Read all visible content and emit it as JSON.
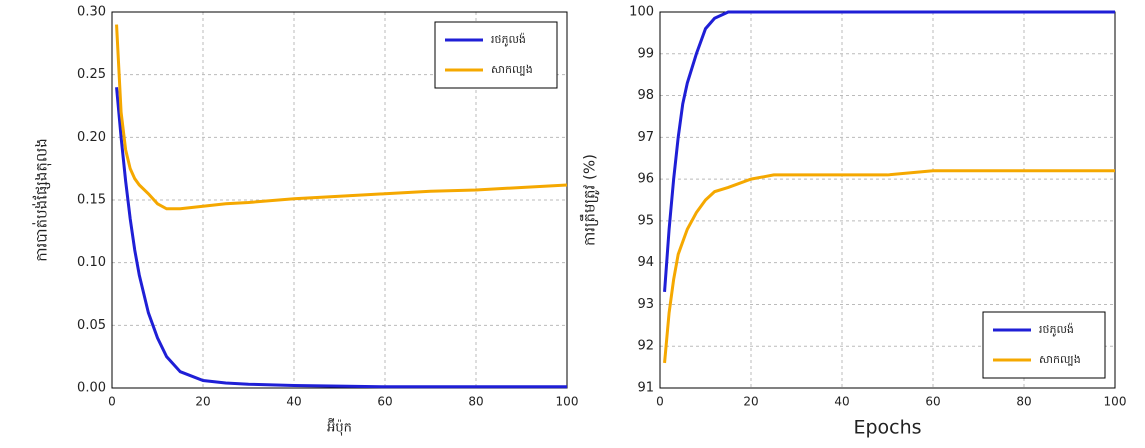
{
  "chart_data": [
    {
      "type": "line",
      "ylabel": "ការបាត់បង់ផ្សែងតុលង",
      "xlabel": "អ៊ីប៉ុក",
      "x": [
        1,
        2,
        3,
        4,
        5,
        6,
        8,
        10,
        12,
        15,
        20,
        25,
        30,
        40,
        50,
        60,
        70,
        80,
        90,
        100
      ],
      "series": [
        {
          "name": "រថភូលង៉",
          "color": "#1f1fd6",
          "values": [
            0.24,
            0.2,
            0.165,
            0.135,
            0.11,
            0.09,
            0.06,
            0.04,
            0.025,
            0.013,
            0.006,
            0.004,
            0.003,
            0.002,
            0.0015,
            0.001,
            0.001,
            0.001,
            0.001,
            0.001
          ]
        },
        {
          "name": "សាកល្បង",
          "color": "#f5a800",
          "values": [
            0.29,
            0.22,
            0.19,
            0.175,
            0.167,
            0.162,
            0.155,
            0.147,
            0.143,
            0.143,
            0.145,
            0.147,
            0.148,
            0.151,
            0.153,
            0.155,
            0.157,
            0.158,
            0.16,
            0.162
          ]
        }
      ],
      "xlim": [
        0,
        100
      ],
      "xticks": [
        0,
        20,
        40,
        60,
        80,
        100
      ],
      "ylim": [
        0,
        0.3
      ],
      "yticks": [
        {
          "value": 0,
          "label": "0.00"
        },
        {
          "value": 0.05,
          "label": "0.05"
        },
        {
          "value": 0.1,
          "label": "0.10"
        },
        {
          "value": 0.15,
          "label": "0.15"
        },
        {
          "value": 0.2,
          "label": "0.20"
        },
        {
          "value": 0.25,
          "label": "0.25"
        },
        {
          "value": 0.3,
          "label": "0.30"
        }
      ],
      "grid": true,
      "legend": "upper right"
    },
    {
      "type": "line",
      "ylabel": "ការត្រឹមត្រូវ (%)",
      "xlabel": "Epochs",
      "x": [
        1,
        2,
        3,
        4,
        5,
        6,
        8,
        10,
        12,
        15,
        20,
        25,
        30,
        40,
        50,
        60,
        70,
        80,
        90,
        100
      ],
      "series": [
        {
          "name": "រថភូលង៉",
          "color": "#1f1fd6",
          "values": [
            93.3,
            94.8,
            96,
            97,
            97.8,
            98.3,
            99,
            99.6,
            99.85,
            100,
            100,
            100,
            100,
            100,
            100,
            100,
            100,
            100,
            100,
            100
          ]
        },
        {
          "name": "សាកល្បង",
          "color": "#f5a800",
          "values": [
            91.6,
            92.8,
            93.6,
            94.2,
            94.5,
            94.8,
            95.2,
            95.5,
            95.7,
            95.8,
            96,
            96.1,
            96.1,
            96.1,
            96.1,
            96.2,
            96.2,
            96.2,
            96.2,
            96.2
          ]
        }
      ],
      "xlim": [
        0,
        100
      ],
      "xticks": [
        0,
        20,
        40,
        60,
        80,
        100
      ],
      "ylim": [
        91,
        100
      ],
      "yticks": [
        91,
        92,
        93,
        94,
        95,
        96,
        97,
        98,
        99,
        100
      ],
      "grid": true,
      "legend": "lower right"
    }
  ]
}
